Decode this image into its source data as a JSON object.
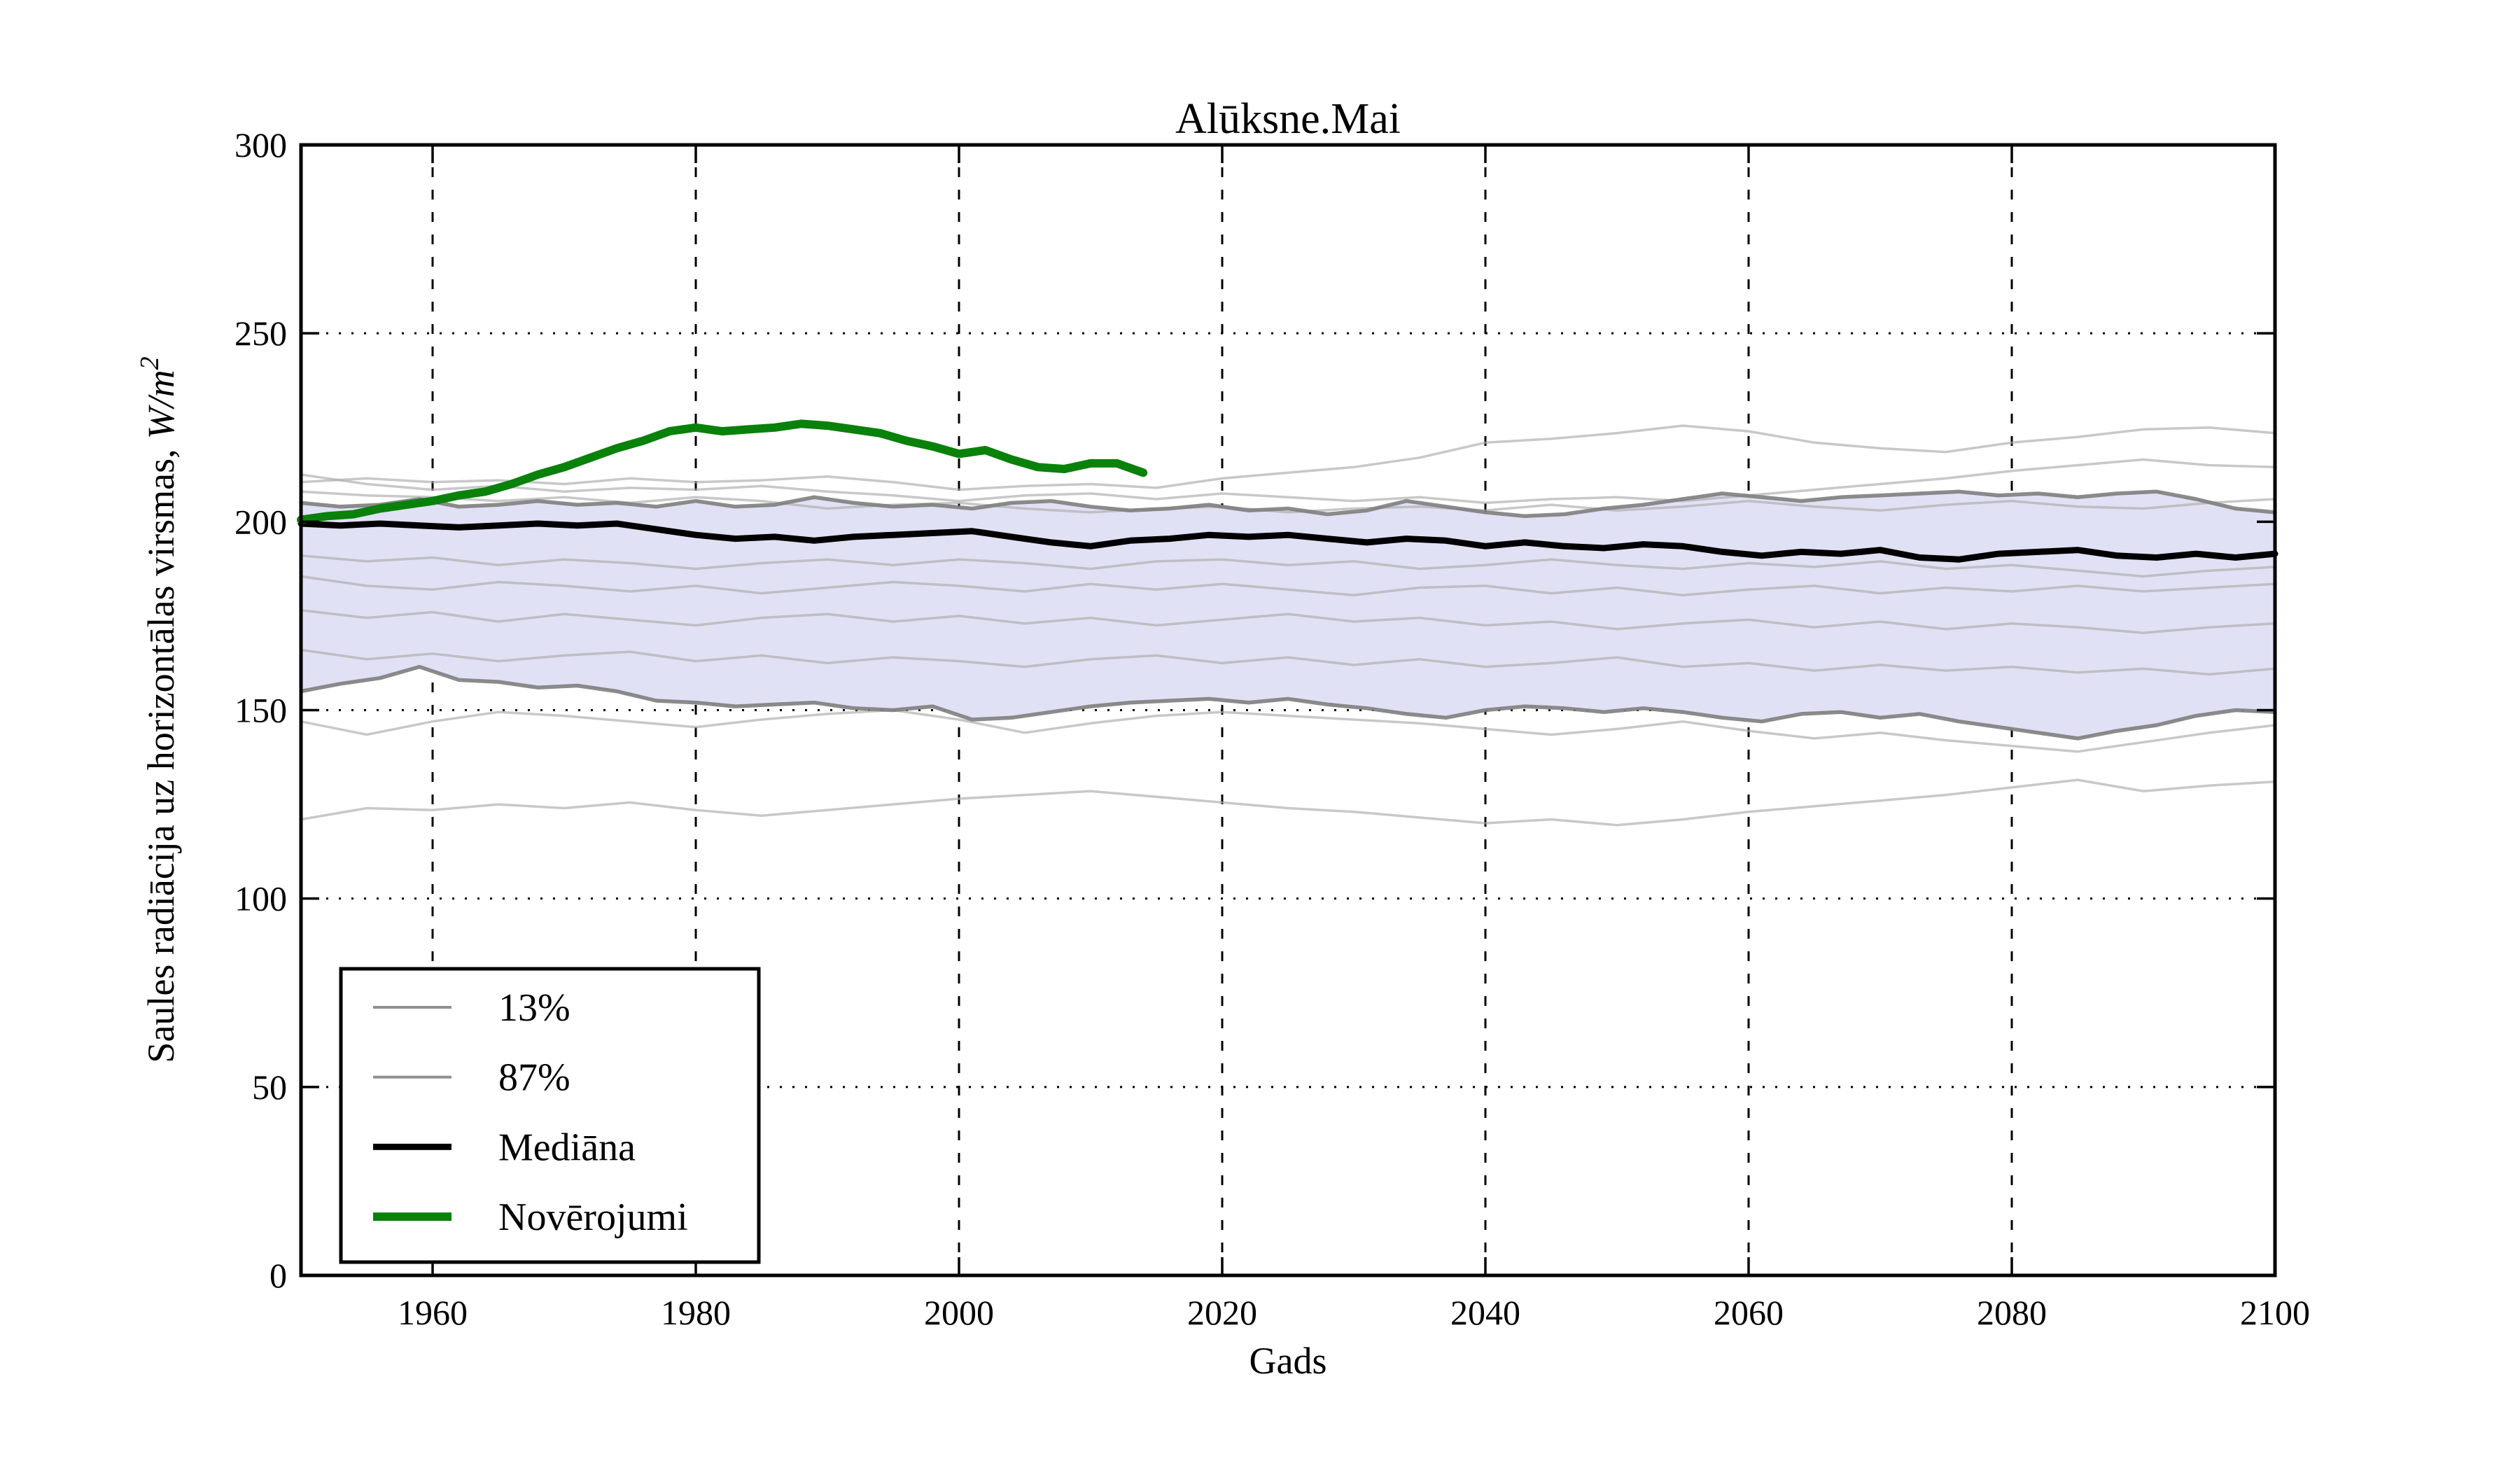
{
  "colors": {
    "axis": "#000000",
    "grid": "#000000",
    "band_fill": "#e1e1f5",
    "band_edge": "#7e7e7e",
    "ensemble": "#aaaaaa",
    "median": "#000000",
    "observations": "#0a810a",
    "legend_gray": "#909090",
    "background": "#ffffff"
  },
  "chart_data": {
    "type": "line",
    "title": "Alūksne.Mai",
    "xlabel": "Gads",
    "ylabel_prefix": "Saules radiācija uz horizontālas virsmas,",
    "ylabel_math": "W/m",
    "ylabel_exponent": "2",
    "xlim": [
      1950,
      2100
    ],
    "ylim": [
      0,
      300
    ],
    "xticks": [
      1960,
      1980,
      2000,
      2020,
      2040,
      2060,
      2080,
      2100
    ],
    "yticks": [
      0,
      50,
      100,
      150,
      200,
      250,
      300
    ],
    "grid": true,
    "band": {
      "upper_key": "p87",
      "lower_key": "p13"
    },
    "legend": {
      "position": "lower left",
      "entries": [
        {
          "label": "13%",
          "color": "#909090",
          "line_width": 4
        },
        {
          "label": "87%",
          "color": "#909090",
          "line_width": 4
        },
        {
          "label": "Mediāna",
          "color": "#000000",
          "line_width": 9
        },
        {
          "label": "Novērojumi",
          "color": "#0a810a",
          "line_width": 12
        }
      ]
    },
    "series": [
      {
        "key": "p13",
        "name": "13%",
        "role": "band_edge",
        "x0": 1950,
        "dx": 3,
        "values": [
          155,
          157,
          158.5,
          161.5,
          158,
          157.5,
          156,
          156.5,
          155,
          152.5,
          152,
          151,
          151.5,
          152,
          150.5,
          150,
          151,
          147.5,
          148,
          149.5,
          151,
          152,
          152.5,
          153,
          152,
          153,
          151.5,
          150.5,
          149,
          148,
          150,
          151,
          150.5,
          149.5,
          150.5,
          149.5,
          148,
          147,
          149,
          149.5,
          148,
          149,
          147,
          145.5,
          144,
          142.5,
          144.5,
          146,
          148.5,
          150,
          149.5
        ]
      },
      {
        "key": "p87",
        "name": "87%",
        "role": "band_edge",
        "x0": 1950,
        "dx": 3,
        "values": [
          205,
          204,
          204.5,
          206,
          204,
          204.5,
          205.5,
          204.5,
          205,
          204,
          205.5,
          204,
          204.5,
          206.5,
          205,
          204,
          204.5,
          203.5,
          205,
          205.5,
          204,
          203,
          203.5,
          204.5,
          203,
          203.5,
          202,
          203,
          205.5,
          204,
          202.5,
          201.5,
          202,
          203.5,
          204.5,
          206,
          207.5,
          206.5,
          205.5,
          206.5,
          207,
          207.5,
          208,
          207,
          207.5,
          206.5,
          207.5,
          208,
          206,
          203.5,
          202.5
        ]
      },
      {
        "key": "median",
        "name": "Mediāna",
        "role": "median",
        "x0": 1950,
        "dx": 3,
        "values": [
          199.5,
          199,
          199.5,
          199,
          198.5,
          199,
          199.5,
          199,
          199.5,
          198,
          196.5,
          195.5,
          196,
          195,
          196,
          196.5,
          197,
          197.5,
          196,
          194.5,
          193.5,
          195,
          195.5,
          196.5,
          196,
          196.5,
          195.5,
          194.5,
          195.5,
          195,
          193.5,
          194.5,
          193.5,
          193,
          194,
          193.5,
          192,
          191,
          192,
          191.5,
          192.5,
          190.5,
          190,
          191.5,
          192,
          192.5,
          191,
          190.5,
          191.5,
          190.5,
          191.5
        ]
      },
      {
        "key": "obs",
        "name": "Novērojumi",
        "role": "observations",
        "x0": 1950,
        "dx": 2,
        "values": [
          200.5,
          201.5,
          202,
          203.5,
          204.5,
          205.5,
          207,
          208,
          210,
          212.5,
          214.5,
          217,
          219.5,
          221.5,
          224,
          225,
          224,
          224.5,
          225,
          226,
          225.5,
          224.5,
          223.5,
          221.5,
          220,
          218,
          219,
          216.5,
          214.5,
          214,
          215.5,
          215.5,
          213
        ]
      },
      {
        "key": "e1",
        "name": "ensemble-member",
        "role": "ensemble",
        "x0": 1950,
        "dx": 5,
        "values": [
          210.5,
          211.5,
          210.5,
          211,
          210,
          211.5,
          210.5,
          211,
          212,
          210.5,
          208.5,
          209.5,
          210,
          209,
          211.5,
          213,
          214.5,
          217,
          221,
          222,
          223.5,
          225.5,
          224,
          221,
          219.5,
          218.5,
          221,
          222.5,
          224.5,
          225,
          223.5
        ]
      },
      {
        "key": "e2",
        "name": "ensemble-member",
        "role": "ensemble",
        "x0": 1950,
        "dx": 5,
        "values": [
          212.5,
          210,
          208.5,
          209.5,
          208,
          209,
          208.5,
          209.5,
          208,
          207,
          205.5,
          207,
          207.5,
          206,
          207.5,
          206.5,
          205.5,
          206.5,
          205,
          206,
          206.5,
          205.5,
          207,
          208.5,
          210,
          211.5,
          213.5,
          215,
          216.5,
          215,
          214.5
        ]
      },
      {
        "key": "e3",
        "name": "ensemble-member",
        "role": "ensemble",
        "x0": 1950,
        "dx": 5,
        "values": [
          208,
          207,
          206.5,
          205.5,
          206.5,
          205,
          206.5,
          205.5,
          203.5,
          204.5,
          205,
          203.5,
          202.5,
          203.5,
          204,
          202.5,
          203.5,
          204,
          203,
          204.5,
          203,
          204,
          205.5,
          204,
          203,
          204.5,
          205.5,
          204,
          203.5,
          205,
          206
        ]
      },
      {
        "key": "e4",
        "name": "ensemble-member",
        "role": "ensemble",
        "x0": 1950,
        "dx": 5,
        "values": [
          191,
          189.5,
          190.5,
          188.5,
          190,
          189,
          187.5,
          189,
          190,
          188.5,
          190,
          189,
          187.5,
          189.5,
          190,
          188.5,
          189.5,
          187.5,
          188.5,
          190,
          188.5,
          187.5,
          189,
          188,
          189.5,
          187.5,
          188.5,
          187,
          185.5,
          187,
          188
        ]
      },
      {
        "key": "e5",
        "name": "ensemble-member",
        "role": "ensemble",
        "x0": 1950,
        "dx": 5,
        "values": [
          185.5,
          183,
          182,
          184,
          183,
          181.5,
          183,
          181,
          182.5,
          184,
          183,
          181.5,
          183.5,
          182,
          183.5,
          182,
          180.5,
          182.5,
          183,
          181,
          182.5,
          180.5,
          182,
          183,
          181,
          182.5,
          181.5,
          183,
          181.5,
          182.5,
          183.5
        ]
      },
      {
        "key": "e6",
        "name": "ensemble-member",
        "role": "ensemble",
        "x0": 1950,
        "dx": 5,
        "values": [
          176.5,
          174.5,
          176,
          173.5,
          175.5,
          174,
          172.5,
          174.5,
          175.5,
          173.5,
          175,
          173,
          174.5,
          172.5,
          174,
          175.5,
          173.5,
          174.5,
          172.5,
          173.5,
          171.5,
          173,
          174,
          172,
          173.5,
          171.5,
          173,
          172,
          170.5,
          172,
          173
        ]
      },
      {
        "key": "e7",
        "name": "ensemble-member",
        "role": "ensemble",
        "x0": 1950,
        "dx": 5,
        "values": [
          166,
          163.5,
          165,
          163,
          164.5,
          165.5,
          163,
          164.5,
          162.5,
          164,
          163,
          161.5,
          163.5,
          164.5,
          162.5,
          164,
          162,
          163.5,
          161.5,
          162.5,
          164,
          161.5,
          162.5,
          160.5,
          162,
          160.5,
          161.5,
          160,
          161,
          159.5,
          161
        ]
      },
      {
        "key": "e8",
        "name": "ensemble-member",
        "role": "ensemble",
        "x0": 1950,
        "dx": 5,
        "values": [
          147,
          143.5,
          147,
          149.5,
          148.5,
          147,
          145.5,
          147.5,
          149,
          150,
          147.5,
          144,
          146.5,
          148.5,
          149.5,
          148.5,
          147.5,
          146.5,
          145,
          143.5,
          145,
          147,
          144.5,
          142.5,
          144,
          142,
          140.5,
          139,
          141.5,
          144,
          146
        ]
      },
      {
        "key": "e9",
        "name": "ensemble-member",
        "role": "ensemble",
        "x0": 1950,
        "dx": 5,
        "values": [
          121,
          124,
          123.5,
          125,
          124,
          125.5,
          123.5,
          122,
          123.5,
          125,
          126.5,
          127.5,
          128.5,
          127,
          125.5,
          124,
          123,
          121.5,
          120,
          121,
          119.5,
          121,
          123,
          124.5,
          126,
          127.5,
          129.5,
          131.5,
          128.5,
          130,
          131
        ]
      }
    ]
  }
}
